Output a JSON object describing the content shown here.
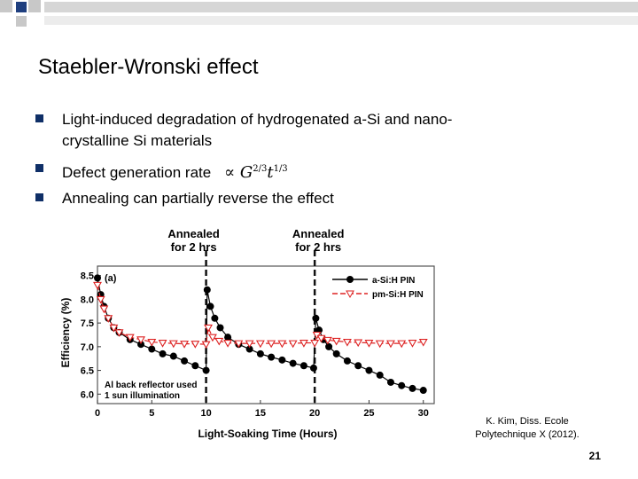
{
  "slide": {
    "title": "Staebler-Wronski effect",
    "bullets": [
      "Light-induced degradation of hydrogenated a-Si and nano-",
      "crystalline Si materials",
      "Defect generation rate",
      "Annealing can partially reverse the effect"
    ],
    "formula": {
      "base": "G",
      "exp1": "2/3",
      "var": "t",
      "exp2": "1/3"
    },
    "citation_line1": "K. Kim, Diss. Ecole",
    "citation_line2": "Polytechnique X (2012).",
    "page_number": "21",
    "colors": {
      "bullet": "#0f2f67",
      "deco_blue": "#1f3f7f",
      "deco_gray": "#c8c8c8"
    }
  },
  "chart_data": {
    "type": "line",
    "panel_label": "(a)",
    "xlabel": "Light-Soaking Time (Hours)",
    "ylabel": "Efficiency (%)",
    "xlim": [
      0,
      31
    ],
    "ylim": [
      5.8,
      8.7
    ],
    "x_ticks": [
      0,
      5,
      10,
      15,
      20,
      25,
      30
    ],
    "y_ticks": [
      6.0,
      6.5,
      7.0,
      7.5,
      8.0,
      8.5
    ],
    "legend_position": "top-right",
    "annotations": [
      {
        "text_line1": "Annealed",
        "text_line2": "for 2 hrs",
        "x": 10
      },
      {
        "text_line1": "Annealed",
        "text_line2": "for 2 hrs",
        "x": 20
      }
    ],
    "note_line1": "Al back reflector used",
    "note_line2": "1 sun illumination",
    "series": [
      {
        "name": "a-Si:H PIN",
        "color": "#000000",
        "marker": "circle",
        "points": [
          [
            0,
            8.45
          ],
          [
            0.3,
            8.1
          ],
          [
            0.6,
            7.85
          ],
          [
            1,
            7.6
          ],
          [
            1.5,
            7.4
          ],
          [
            2,
            7.3
          ],
          [
            3,
            7.15
          ],
          [
            4,
            7.05
          ],
          [
            5,
            6.95
          ],
          [
            6,
            6.85
          ],
          [
            7,
            6.8
          ],
          [
            8,
            6.7
          ],
          [
            9,
            6.6
          ],
          [
            10,
            6.5
          ],
          [
            10.1,
            8.2
          ],
          [
            10.4,
            7.85
          ],
          [
            10.8,
            7.6
          ],
          [
            11.3,
            7.4
          ],
          [
            12,
            7.2
          ],
          [
            13,
            7.05
          ],
          [
            14,
            6.95
          ],
          [
            15,
            6.85
          ],
          [
            16,
            6.78
          ],
          [
            17,
            6.72
          ],
          [
            18,
            6.65
          ],
          [
            19,
            6.6
          ],
          [
            19.9,
            6.55
          ],
          [
            20.1,
            7.6
          ],
          [
            20.4,
            7.35
          ],
          [
            20.8,
            7.15
          ],
          [
            21.3,
            7.0
          ],
          [
            22,
            6.85
          ],
          [
            23,
            6.7
          ],
          [
            24,
            6.6
          ],
          [
            25,
            6.5
          ],
          [
            26,
            6.4
          ],
          [
            27,
            6.25
          ],
          [
            28,
            6.18
          ],
          [
            29,
            6.12
          ],
          [
            30,
            6.08
          ]
        ]
      },
      {
        "name": "pm-Si:H PIN",
        "color": "#dd2222",
        "marker": "triangle-down",
        "points": [
          [
            0,
            8.3
          ],
          [
            0.3,
            8.0
          ],
          [
            0.6,
            7.8
          ],
          [
            1,
            7.6
          ],
          [
            1.5,
            7.4
          ],
          [
            2,
            7.3
          ],
          [
            3,
            7.2
          ],
          [
            4,
            7.15
          ],
          [
            5,
            7.1
          ],
          [
            6,
            7.08
          ],
          [
            7,
            7.07
          ],
          [
            8,
            7.06
          ],
          [
            9,
            7.06
          ],
          [
            10,
            7.05
          ],
          [
            10.2,
            7.4
          ],
          [
            10.6,
            7.2
          ],
          [
            11.2,
            7.12
          ],
          [
            12,
            7.08
          ],
          [
            13,
            7.07
          ],
          [
            14,
            7.07
          ],
          [
            15,
            7.07
          ],
          [
            16,
            7.07
          ],
          [
            17,
            7.07
          ],
          [
            18,
            7.07
          ],
          [
            19,
            7.08
          ],
          [
            20,
            7.08
          ],
          [
            20.2,
            7.25
          ],
          [
            20.6,
            7.18
          ],
          [
            21.2,
            7.14
          ],
          [
            22,
            7.12
          ],
          [
            23,
            7.1
          ],
          [
            24,
            7.09
          ],
          [
            25,
            7.08
          ],
          [
            26,
            7.07
          ],
          [
            27,
            7.07
          ],
          [
            28,
            7.07
          ],
          [
            29,
            7.08
          ],
          [
            30,
            7.1
          ]
        ]
      }
    ]
  }
}
